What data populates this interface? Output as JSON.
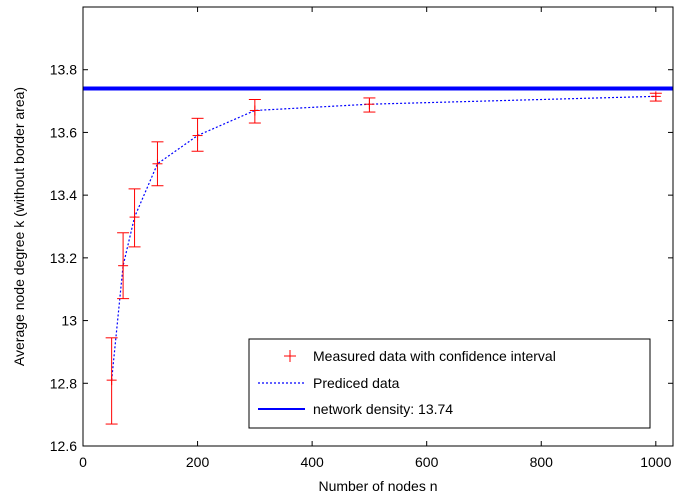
{
  "chart_data": {
    "type": "line",
    "title": "",
    "xlabel": "Number of nodes n",
    "ylabel": "Average node degree k (without border area)",
    "xlim": [
      0,
      1030
    ],
    "ylim": [
      12.6,
      14.0
    ],
    "xticks": [
      0,
      200,
      400,
      600,
      800,
      1000
    ],
    "xtick_labels": [
      "0",
      "200",
      "400",
      "600",
      "800",
      "1000"
    ],
    "yticks": [
      12.6,
      12.8,
      13.0,
      13.2,
      13.4,
      13.6,
      13.8
    ],
    "ytick_labels": [
      "12.6",
      "12.8",
      "13",
      "13.2",
      "13.4",
      "13.6",
      "13.8"
    ],
    "grid": false,
    "legend_position": "bottom-right",
    "series": [
      {
        "name": "Measured data with confidence interval",
        "style": "errorbar",
        "color": "#ff0000",
        "x": [
          50,
          70,
          90,
          130,
          200,
          300,
          500,
          1000
        ],
        "y": [
          12.81,
          13.175,
          13.33,
          13.5,
          13.59,
          13.67,
          13.69,
          13.715
        ],
        "lower": [
          12.67,
          13.07,
          13.235,
          13.43,
          13.54,
          13.63,
          13.665,
          13.7
        ],
        "upper": [
          12.945,
          13.28,
          13.42,
          13.57,
          13.645,
          13.705,
          13.71,
          13.725
        ]
      },
      {
        "name": "Prediced data",
        "style": "dotted",
        "color": "#0000ff",
        "x": [
          50,
          70,
          90,
          130,
          200,
          300,
          500,
          1000
        ],
        "y": [
          12.81,
          13.175,
          13.33,
          13.5,
          13.59,
          13.67,
          13.69,
          13.715
        ]
      },
      {
        "name": "network density: 13.74",
        "style": "solid",
        "color": "#0000ff",
        "x": [
          0,
          1030
        ],
        "y": [
          13.74,
          13.74
        ]
      }
    ]
  }
}
